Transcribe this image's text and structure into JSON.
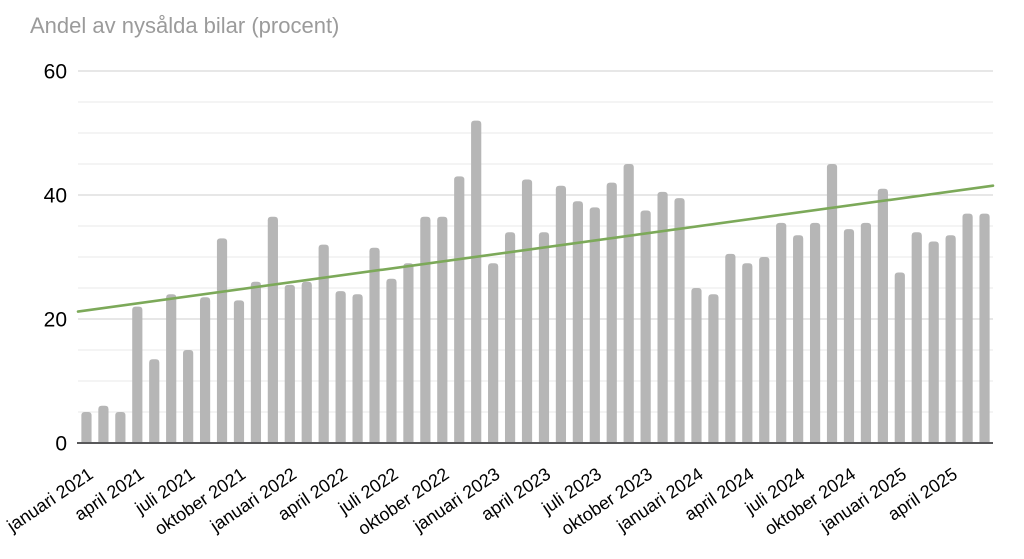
{
  "title": "Andel av nysålda bilar (procent)",
  "chart_data": {
    "type": "bar",
    "title": "Andel av nysålda bilar (procent)",
    "xlabel": "",
    "ylabel": "",
    "ylim": [
      0,
      60
    ],
    "y_major_ticks": [
      "0",
      "20",
      "40",
      "60"
    ],
    "y_major_values": [
      0,
      20,
      40,
      60
    ],
    "y_minor_step": 5,
    "grid": true,
    "legend": "none",
    "bar_color": "#b6b6b6",
    "x": [
      "januari 2021",
      "februari 2021",
      "mars 2021",
      "april 2021",
      "maj 2021",
      "juni 2021",
      "juli 2021",
      "augusti 2021",
      "september 2021",
      "oktober 2021",
      "november 2021",
      "december 2021",
      "januari 2022",
      "februari 2022",
      "mars 2022",
      "april 2022",
      "maj 2022",
      "juni 2022",
      "juli 2022",
      "augusti 2022",
      "september 2022",
      "oktober 2022",
      "november 2022",
      "december 2022",
      "januari 2023",
      "februari 2023",
      "mars 2023",
      "april 2023",
      "maj 2023",
      "juni 2023",
      "juli 2023",
      "augusti 2023",
      "september 2023",
      "oktober 2023",
      "november 2023",
      "december 2023",
      "januari 2024",
      "februari 2024",
      "mars 2024",
      "april 2024",
      "maj 2024",
      "juni 2024",
      "juli 2024",
      "augusti 2024",
      "september 2024",
      "oktober 2024",
      "november 2024",
      "december 2024",
      "januari 2025",
      "februari 2025",
      "mars 2025",
      "april 2025",
      "maj 2025",
      "juni 2025"
    ],
    "values": [
      5,
      6,
      5,
      22,
      13.5,
      24,
      15,
      23.5,
      33,
      23,
      26,
      36.5,
      25.5,
      26,
      32,
      24.5,
      24,
      31.5,
      26.5,
      29,
      36.5,
      36.5,
      43,
      52,
      29,
      34,
      42.5,
      34,
      41.5,
      39,
      38,
      42,
      45,
      37.5,
      40.5,
      39.5,
      25,
      24,
      30.5,
      29,
      30,
      35.5,
      33.5,
      35.5,
      45,
      34.5,
      35.5,
      41,
      27.5,
      34,
      32.5,
      33.5,
      37,
      37
    ],
    "x_tick_indices": [
      0,
      3,
      6,
      9,
      12,
      15,
      18,
      21,
      24,
      27,
      30,
      33,
      36,
      39,
      42,
      45,
      48,
      51
    ],
    "x_tick_labels": [
      "januari 2021",
      "april 2021",
      "juli 2021",
      "oktober 2021",
      "januari 2022",
      "april 2022",
      "juli 2022",
      "oktober 2022",
      "januari 2023",
      "april 2023",
      "juli 2023",
      "oktober 2023",
      "januari 2024",
      "april 2024",
      "juli 2024",
      "oktober 2024",
      "januari 2025",
      "april 2025"
    ],
    "trendline": {
      "type": "linear",
      "start_value": 21.2,
      "end_value": 41.5
    }
  },
  "colors": {
    "bar": "#b6b6b6",
    "trendline": "#7ca959",
    "gridline_major": "#cfcfcf",
    "gridline_minor": "#e9e9e9",
    "axis_line": "#58585a",
    "tick_label": "#000000",
    "title": "#9b9b9b",
    "background": "#ffffff"
  }
}
